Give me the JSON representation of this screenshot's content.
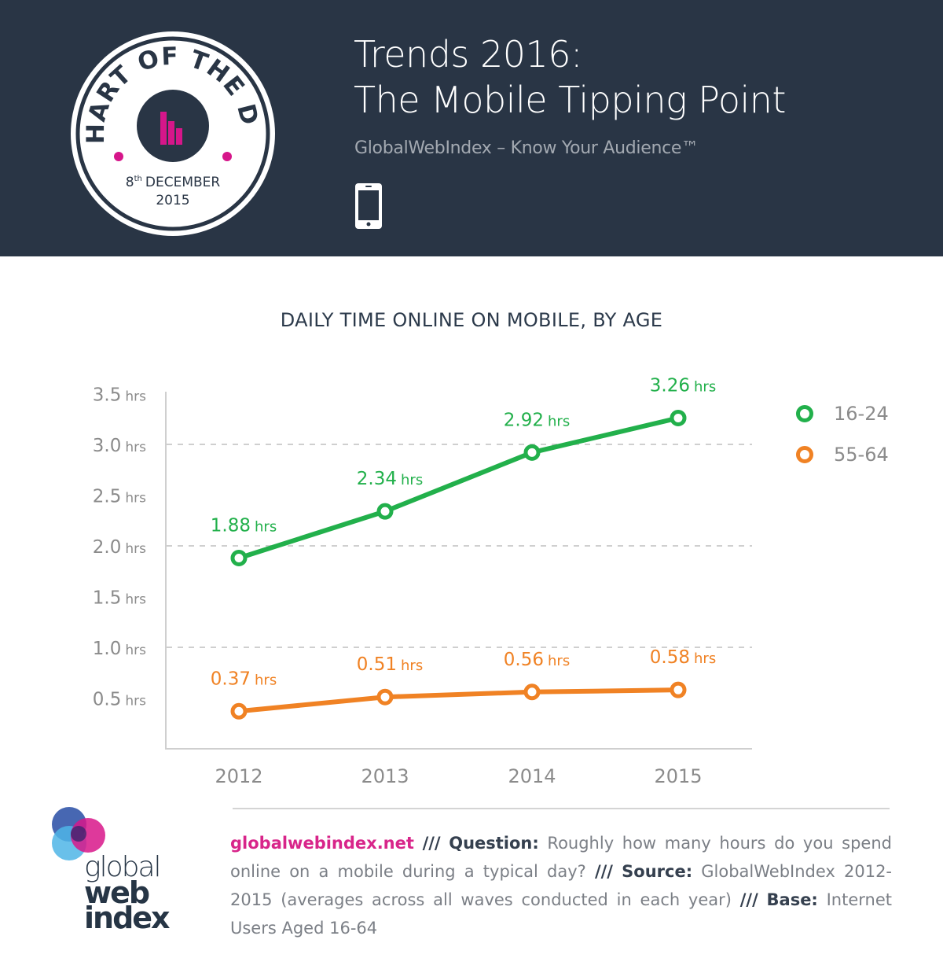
{
  "header": {
    "badge": {
      "arc_text": "CHART OF THE DAY",
      "day": "8",
      "day_suffix": "th",
      "month": "DECEMBER",
      "year": "2015",
      "accent_color": "#d6168a"
    },
    "title_line1": "Trends 2016:",
    "title_line2": "The Mobile Tipping Point",
    "subtitle": "GlobalWebIndex – Know Your Audience™",
    "icon": "smartphone-icon",
    "background_color": "#293545"
  },
  "chart_data": {
    "type": "line",
    "title": "DAILY TIME ONLINE ON MOBILE, BY AGE",
    "xlabel": "",
    "ylabel": "hrs",
    "categories": [
      "2012",
      "2013",
      "2014",
      "2015"
    ],
    "ylim": [
      0,
      3.5
    ],
    "y_ticks": [
      {
        "value": 3.5,
        "label": "3.5",
        "unit": "hrs"
      },
      {
        "value": 3.0,
        "label": "3.0",
        "unit": "hrs"
      },
      {
        "value": 2.5,
        "label": "2.5",
        "unit": "hrs"
      },
      {
        "value": 2.0,
        "label": "2.0",
        "unit": "hrs"
      },
      {
        "value": 1.5,
        "label": "1.5",
        "unit": "hrs"
      },
      {
        "value": 1.0,
        "label": "1.0",
        "unit": "hrs"
      },
      {
        "value": 0.5,
        "label": "0.5",
        "unit": "hrs"
      }
    ],
    "dashed_gridlines": [
      3.0,
      2.0,
      1.0
    ],
    "legend_position": "right",
    "series": [
      {
        "name": "16-24",
        "color": "#22b04b",
        "values": [
          1.88,
          2.34,
          2.92,
          3.26
        ],
        "labels": [
          "1.88",
          "2.34",
          "2.92",
          "3.26"
        ],
        "unit": "hrs"
      },
      {
        "name": "55-64",
        "color": "#f08224",
        "values": [
          0.37,
          0.51,
          0.56,
          0.58
        ],
        "labels": [
          "0.37",
          "0.51",
          "0.56",
          "0.58"
        ],
        "unit": "hrs"
      }
    ]
  },
  "legend": [
    {
      "label": "16-24",
      "color": "#22b04b"
    },
    {
      "label": "55-64",
      "color": "#f08224"
    }
  ],
  "footer": {
    "logo": {
      "line1": "global",
      "line2": "web",
      "line3": "index"
    },
    "link": "globalwebindex.net",
    "separator": "///",
    "question_label": "Question:",
    "question_text": "Roughly how many hours do you spend online on a mobile during a typical day?",
    "source_label": "Source:",
    "source_text": "GlobalWebIndex 2012-2015 (averages across all waves conducted in each year)",
    "base_label": "Base:",
    "base_text": "Internet Users Aged 16-64"
  }
}
